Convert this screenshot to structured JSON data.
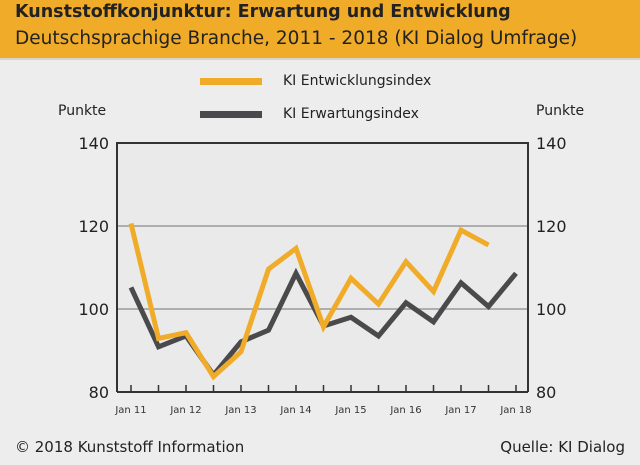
{
  "header": {
    "title": "Kunststoffkonjunktur: Erwartung und Entwicklung",
    "subtitle": "Deutschsprachige Branche, 2011 - 2018 (KI Dialog Umfrage)"
  },
  "footer": {
    "copyright": "© 2018 Kunststoff Information",
    "source": "Quelle: KI Dialog"
  },
  "chart_data": {
    "type": "line",
    "title": "Kunststoffkonjunktur: Erwartung und Entwicklung",
    "subtitle": "Deutschsprachige Branche, 2011 - 2018 (KI Dialog Umfrage)",
    "ylabel": "Punkte",
    "ylabel_right": "Punkte",
    "ylim": [
      80,
      140
    ],
    "yticks": [
      80,
      100,
      120,
      140
    ],
    "grid": "horizontal at 100 and 120",
    "legend": "top-center",
    "x": [
      "Jan 11",
      "Jul 11",
      "Jan 12",
      "Jul 12",
      "Jan 13",
      "Jul 13",
      "Jan 14",
      "Jul 14",
      "Jan 15",
      "Jul 15",
      "Jan 16",
      "Jul 16",
      "Jan 17",
      "Jul 17",
      "Jan 18"
    ],
    "xtick_labels": [
      "Jan 11",
      "Jan 12",
      "Jan 13",
      "Jan 14",
      "Jan 15",
      "Jan 16",
      "Jan 17",
      "Jan 18"
    ],
    "series": [
      {
        "name": "KI Entwicklungsindex",
        "color": "#f0ab28",
        "values": [
          120.6,
          92.9,
          94.3,
          83.7,
          89.7,
          109.6,
          114.6,
          95.7,
          107.4,
          101.2,
          111.4,
          104.2,
          119.0,
          115.4,
          null
        ]
      },
      {
        "name": "KI Erwartungsindex",
        "color": "#4a4a4c",
        "values": [
          105.2,
          90.9,
          93.5,
          84.1,
          92.1,
          94.9,
          108.6,
          95.9,
          98.0,
          93.5,
          101.5,
          96.9,
          106.3,
          100.6,
          108.6
        ]
      }
    ]
  }
}
